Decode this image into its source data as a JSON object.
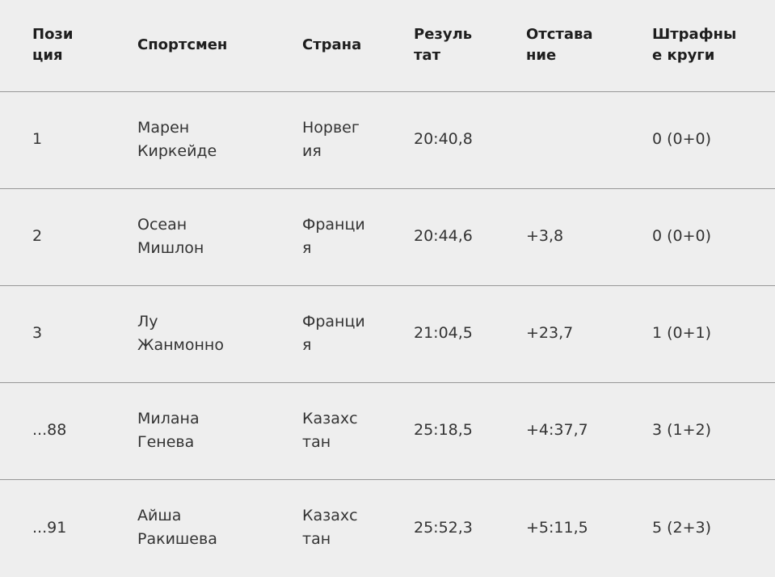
{
  "colors": {
    "background": "#eeeeee",
    "divider": "#979797",
    "header_text": "#1e1e1e",
    "cell_text": "#333333"
  },
  "table": {
    "columns": [
      {
        "key": "position",
        "label": "Позиция"
      },
      {
        "key": "athlete",
        "label": "Спортсмен"
      },
      {
        "key": "country",
        "label": "Страна"
      },
      {
        "key": "result",
        "label": "Результат"
      },
      {
        "key": "gap",
        "label": "Отставание"
      },
      {
        "key": "penalty_loops",
        "label": "Штрафные круги"
      }
    ],
    "rows": [
      {
        "position": "1",
        "athlete": "Марен Киркейде",
        "country": "Норвегия",
        "result": "20:40,8",
        "gap": "",
        "penalty_loops": "0 (0+0)"
      },
      {
        "position": "2",
        "athlete": "Осеан Мишлон",
        "country": "Франция",
        "result": "20:44,6",
        "gap": "+3,8",
        "penalty_loops": "0 (0+0)"
      },
      {
        "position": "3",
        "athlete": "Лу Жанмонно",
        "country": "Франция",
        "result": "21:04,5",
        "gap": "+23,7",
        "penalty_loops": "1 (0+1)"
      },
      {
        "position": "...88",
        "athlete": "Милана Генева",
        "country": "Казахстан",
        "result": "25:18,5",
        "gap": "+4:37,7",
        "penalty_loops": "3 (1+2)"
      },
      {
        "position": "...91",
        "athlete": "Айша Ракишева",
        "country": "Казахстан",
        "result": "25:52,3",
        "gap": "+5:11,5",
        "penalty_loops": "5 (2+3)"
      }
    ]
  }
}
